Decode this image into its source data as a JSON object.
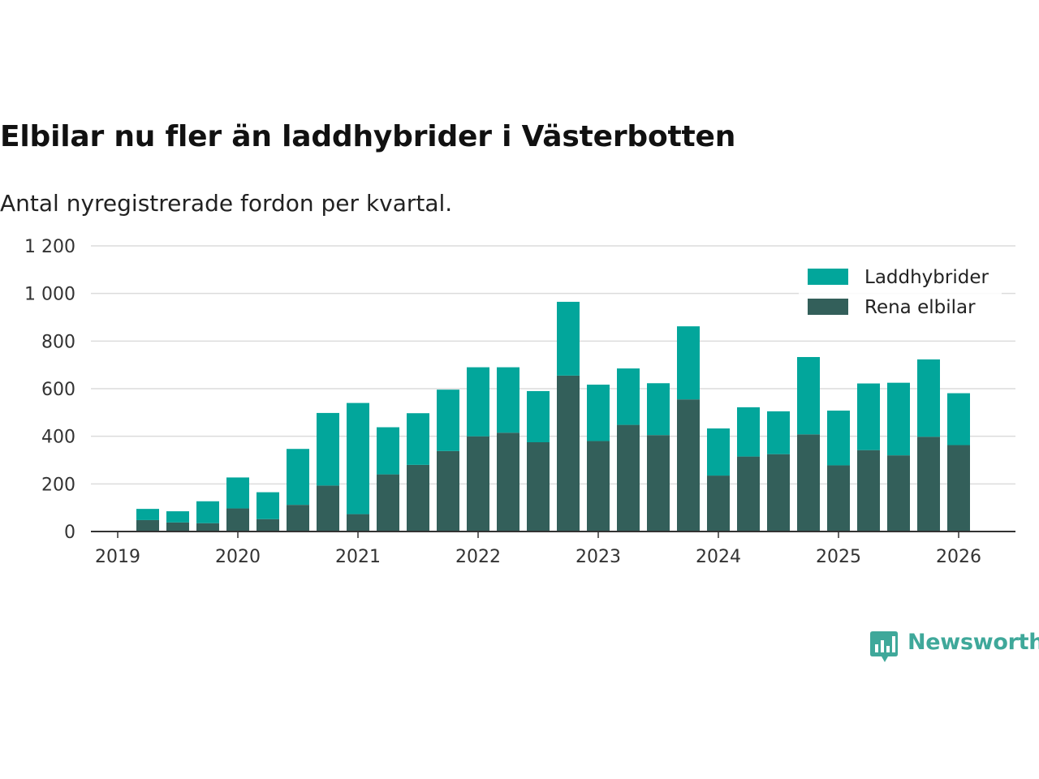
{
  "title": "Elbilar nu fler än laddhybrider i Västerbotten",
  "subtitle": "Antal nyregistrerade fordon per kvartal.",
  "brand": {
    "name": "Newsworthy",
    "icon": "newsworthy-logo-icon",
    "color": "#3fa89a"
  },
  "chart_data": {
    "type": "bar",
    "stacked": true,
    "title": "Elbilar nu fler än laddhybrider i Västerbotten",
    "subtitle": "Antal nyregistrerade fordon per kvartal.",
    "xlabel": "",
    "ylabel": "",
    "ylim": [
      0,
      1200
    ],
    "yticks": [
      0,
      200,
      400,
      600,
      800,
      1000,
      1200
    ],
    "ytick_labels": [
      "0",
      "200",
      "400",
      "600",
      "800",
      "1 000",
      "1 200"
    ],
    "xticks": [
      2019,
      2020,
      2021,
      2022,
      2023,
      2024,
      2025,
      2026
    ],
    "xtick_labels": [
      "2019",
      "2020",
      "2021",
      "2022",
      "2023",
      "2024",
      "2025",
      "2026"
    ],
    "grid": true,
    "legend_position": "top-right",
    "categories": [
      "2019 Q2",
      "2019 Q3",
      "2019 Q4",
      "2020 Q1",
      "2020 Q2",
      "2020 Q3",
      "2020 Q4",
      "2021 Q1",
      "2021 Q2",
      "2021 Q3",
      "2021 Q4",
      "2022 Q1",
      "2022 Q2",
      "2022 Q3",
      "2022 Q4",
      "2023 Q1",
      "2023 Q2",
      "2023 Q3",
      "2023 Q4",
      "2024 Q1",
      "2024 Q2",
      "2024 Q3",
      "2024 Q4",
      "2025 Q1",
      "2025 Q2",
      "2025 Q3",
      "2025 Q4",
      "2026 Q1"
    ],
    "x_positions": [
      2019.25,
      2019.5,
      2019.75,
      2020.0,
      2020.25,
      2020.5,
      2020.75,
      2021.0,
      2021.25,
      2021.5,
      2021.75,
      2022.0,
      2022.25,
      2022.5,
      2022.75,
      2023.0,
      2023.25,
      2023.5,
      2023.75,
      2024.0,
      2024.25,
      2024.5,
      2024.75,
      2025.0,
      2025.25,
      2025.5,
      2025.75,
      2026.0
    ],
    "series": [
      {
        "name": "Rena elbilar",
        "color": "#335f5a",
        "values": [
          48,
          38,
          35,
          97,
          52,
          112,
          193,
          73,
          240,
          280,
          338,
          400,
          415,
          375,
          655,
          380,
          448,
          405,
          555,
          235,
          315,
          325,
          408,
          278,
          342,
          320,
          398,
          363
        ]
      },
      {
        "name": "Laddhybrider",
        "color": "#02a69b",
        "values": [
          47,
          47,
          92,
          130,
          113,
          235,
          305,
          467,
          198,
          217,
          258,
          290,
          275,
          215,
          310,
          237,
          237,
          218,
          307,
          198,
          207,
          180,
          325,
          230,
          280,
          305,
          325,
          218
        ]
      }
    ]
  }
}
